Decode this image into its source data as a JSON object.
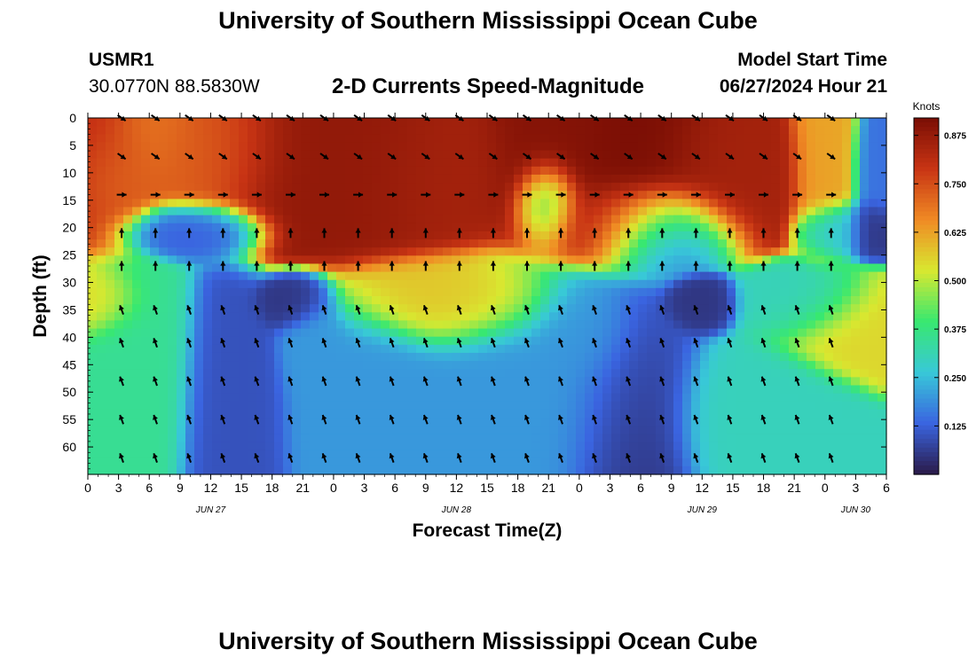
{
  "header": {
    "title": "University of Southern Mississippi Ocean Cube",
    "station": "USMR1",
    "coords": "30.0770N  88.5830W",
    "subtitle": "2-D Currents Speed-Magnitude",
    "model_start_label": "Model Start Time",
    "model_start_value": "06/27/2024 Hour 21",
    "footer_title": "University of Southern Mississippi Ocean Cube"
  },
  "chart_data": {
    "type": "heatmap",
    "xlabel": "Forecast Time(Z)",
    "ylabel": "Depth (ft)",
    "colorbar_label": "Knots",
    "x_tick_labels": [
      "0",
      "3",
      "6",
      "9",
      "12",
      "15",
      "18",
      "21",
      "0",
      "3",
      "6",
      "9",
      "12",
      "15",
      "18",
      "21",
      "0",
      "3",
      "6",
      "9",
      "12",
      "15",
      "18",
      "21",
      "0",
      "3",
      "6"
    ],
    "x_range_hours": [
      0,
      78
    ],
    "date_labels": [
      {
        "label": "JUN 27",
        "hour": 12
      },
      {
        "label": "JUN 28",
        "hour": 36
      },
      {
        "label": "JUN 29",
        "hour": 60
      },
      {
        "label": "JUN 30",
        "hour": 75
      }
    ],
    "y_tick_labels": [
      "0",
      "5",
      "10",
      "15",
      "20",
      "25",
      "30",
      "35",
      "40",
      "45",
      "50",
      "55",
      "60"
    ],
    "y_range_ft": [
      0,
      65
    ],
    "y_reversed": true,
    "colorbar_ticks": [
      "0.125",
      "0.250",
      "0.375",
      "0.500",
      "0.625",
      "0.750",
      "0.875"
    ],
    "colorbar_range": [
      0,
      0.92
    ],
    "colormap": [
      "#2a1a48",
      "#3a64e0",
      "#38c8d8",
      "#38e870",
      "#d8e830",
      "#f08a24",
      "#c83414",
      "#7a0e04"
    ],
    "speed_blobs_hour_ft_knots": [
      [
        1,
        5,
        0.8,
        4,
        10
      ],
      [
        3,
        10,
        0.7,
        3,
        6
      ],
      [
        0,
        34,
        0.55,
        3,
        4
      ],
      [
        6,
        2,
        0.68,
        3,
        6
      ],
      [
        10,
        5,
        0.72,
        4,
        8
      ],
      [
        14,
        4,
        0.75,
        4,
        8
      ],
      [
        20,
        5,
        0.88,
        5,
        10
      ],
      [
        28,
        6,
        0.88,
        5,
        10
      ],
      [
        34,
        8,
        0.85,
        5,
        9
      ],
      [
        46,
        5,
        0.9,
        5,
        10
      ],
      [
        54,
        6,
        0.92,
        5,
        10
      ],
      [
        52,
        18,
        0.8,
        6,
        5
      ],
      [
        62,
        8,
        0.85,
        5,
        8
      ],
      [
        72,
        6,
        0.62,
        2,
        10
      ],
      [
        36,
        34,
        0.58,
        6,
        5
      ],
      [
        56,
        20,
        0.1,
        4,
        5
      ],
      [
        53,
        55,
        0.05,
        4,
        12
      ],
      [
        60,
        34,
        0.05,
        2,
        3
      ],
      [
        70,
        34,
        0.3,
        4,
        4
      ],
      [
        76,
        38,
        0.55,
        5,
        5
      ],
      [
        10,
        20,
        0.12,
        4,
        3
      ],
      [
        20,
        34,
        0.05,
        2,
        3
      ],
      [
        14,
        52,
        0.1,
        3,
        12
      ],
      [
        28,
        52,
        0.2,
        5,
        10
      ],
      [
        44,
        50,
        0.2,
        8,
        12
      ],
      [
        77,
        20,
        0.05,
        2,
        3
      ],
      [
        78,
        8,
        0.15,
        2,
        8
      ],
      [
        45,
        15,
        0.3,
        2,
        5
      ],
      [
        73,
        20,
        0.25,
        2,
        3
      ],
      [
        65,
        55,
        0.3,
        5,
        8
      ],
      [
        4,
        48,
        0.35,
        4,
        12
      ],
      [
        22,
        42,
        0.2,
        2,
        6
      ],
      [
        48,
        40,
        0.2,
        3,
        6
      ]
    ],
    "arrow_rows_ft": [
      0,
      7,
      14,
      21,
      27,
      35,
      41,
      48,
      55,
      62
    ],
    "arrow_directions_by_depth": [
      {
        "max_ft": 10,
        "direction": "southeast"
      },
      {
        "max_ft": 20,
        "direction": "east"
      },
      {
        "max_ft": 30,
        "direction": "north"
      },
      {
        "max_ft": 65,
        "direction": "north-northwest"
      }
    ]
  }
}
